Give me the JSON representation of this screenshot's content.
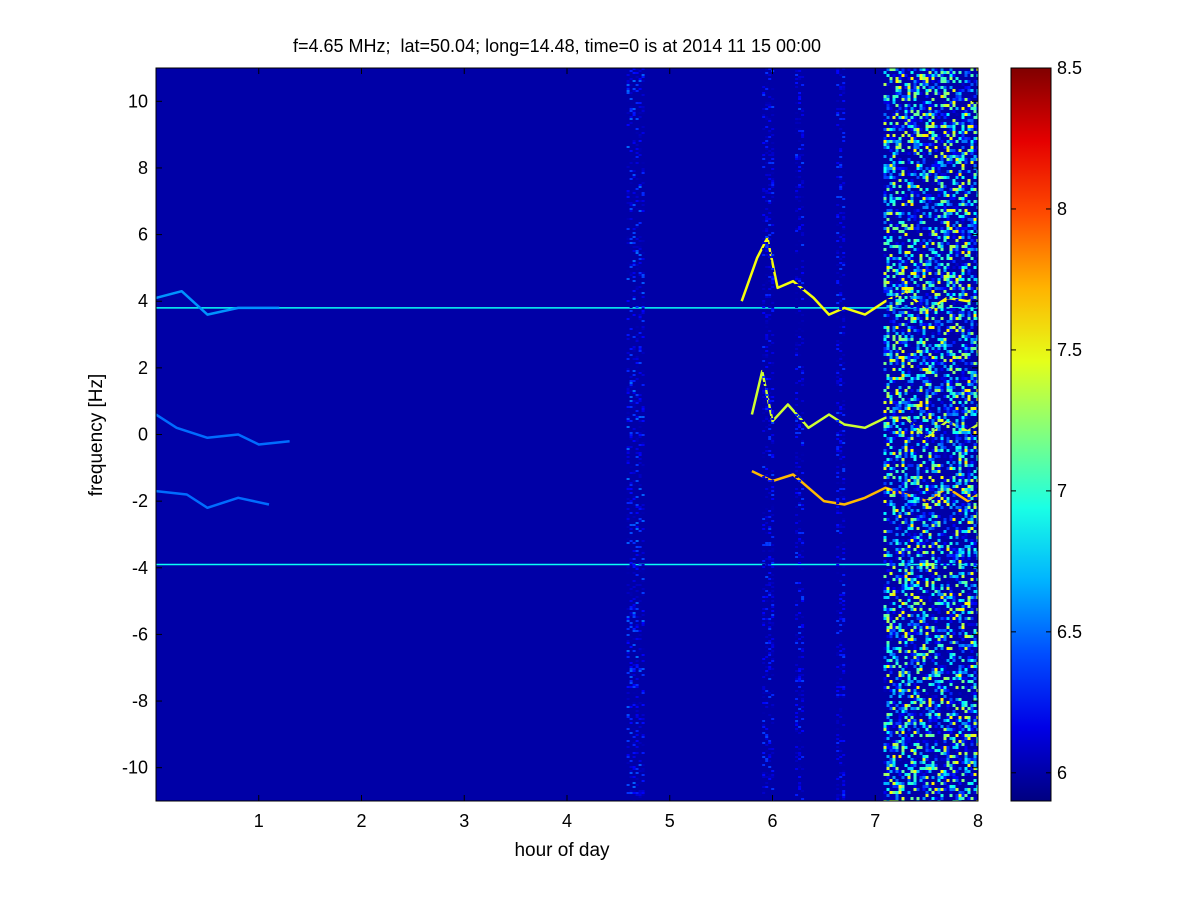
{
  "chart_data": {
    "type": "heatmap",
    "title": "f=4.65 MHz;  lat=50.04; long=14.48, time=0 is at 2014 11 15 00:00",
    "xlabel": "hour of day",
    "ylabel": "frequency [Hz]",
    "xlim": [
      0,
      8
    ],
    "ylim": [
      -11,
      11
    ],
    "x_ticks": [
      "1",
      "2",
      "3",
      "4",
      "5",
      "6",
      "7",
      "8"
    ],
    "y_ticks": [
      "-10",
      "-8",
      "-6",
      "-4",
      "-2",
      "0",
      "2",
      "4",
      "6",
      "8",
      "10"
    ],
    "colorbar": {
      "range": [
        5.9,
        8.5
      ],
      "ticks": [
        "6",
        "6.5",
        "7",
        "7.5",
        "8",
        "8.5"
      ],
      "colormap": "jet"
    },
    "background_level": 6.0,
    "features": [
      {
        "kind": "horizontal-line",
        "y": 3.8,
        "x_range": [
          0,
          8
        ],
        "level": 6.9
      },
      {
        "kind": "horizontal-line",
        "y": -3.9,
        "x_range": [
          0,
          8
        ],
        "level": 6.9
      },
      {
        "kind": "trace",
        "points": [
          [
            0.0,
            4.1
          ],
          [
            0.25,
            4.3
          ],
          [
            0.5,
            3.6
          ],
          [
            0.8,
            3.8
          ],
          [
            1.2,
            3.8
          ]
        ],
        "level": 6.6
      },
      {
        "kind": "trace",
        "points": [
          [
            0.0,
            0.6
          ],
          [
            0.2,
            0.2
          ],
          [
            0.5,
            -0.1
          ],
          [
            0.8,
            0.0
          ],
          [
            1.0,
            -0.3
          ],
          [
            1.3,
            -0.2
          ]
        ],
        "level": 6.5
      },
      {
        "kind": "trace",
        "points": [
          [
            0.0,
            -1.7
          ],
          [
            0.3,
            -1.8
          ],
          [
            0.5,
            -2.2
          ],
          [
            0.8,
            -1.9
          ],
          [
            1.1,
            -2.1
          ]
        ],
        "level": 6.5
      },
      {
        "kind": "trace",
        "points": [
          [
            5.7,
            4.0
          ],
          [
            5.85,
            5.3
          ],
          [
            5.95,
            5.9
          ],
          [
            6.05,
            4.4
          ],
          [
            6.2,
            4.6
          ],
          [
            6.4,
            4.1
          ],
          [
            6.55,
            3.6
          ],
          [
            6.7,
            3.8
          ],
          [
            6.9,
            3.6
          ],
          [
            7.1,
            4.0
          ],
          [
            7.3,
            4.3
          ],
          [
            7.5,
            3.7
          ],
          [
            7.7,
            4.1
          ],
          [
            7.9,
            4.0
          ],
          [
            8.0,
            4.1
          ]
        ],
        "level": 7.5
      },
      {
        "kind": "trace",
        "points": [
          [
            5.8,
            0.6
          ],
          [
            5.9,
            1.9
          ],
          [
            6.0,
            0.4
          ],
          [
            6.15,
            0.9
          ],
          [
            6.35,
            0.2
          ],
          [
            6.55,
            0.6
          ],
          [
            6.7,
            0.3
          ],
          [
            6.9,
            0.2
          ],
          [
            7.1,
            0.5
          ],
          [
            7.3,
            0.5
          ],
          [
            7.5,
            -0.1
          ],
          [
            7.7,
            0.4
          ],
          [
            7.9,
            0.1
          ],
          [
            8.0,
            0.3
          ]
        ],
        "level": 7.4
      },
      {
        "kind": "trace",
        "points": [
          [
            5.8,
            -1.1
          ],
          [
            6.0,
            -1.4
          ],
          [
            6.2,
            -1.2
          ],
          [
            6.35,
            -1.6
          ],
          [
            6.5,
            -2.0
          ],
          [
            6.7,
            -2.1
          ],
          [
            6.9,
            -1.9
          ],
          [
            7.1,
            -1.6
          ],
          [
            7.3,
            -1.8
          ],
          [
            7.5,
            -2.0
          ],
          [
            7.7,
            -1.6
          ],
          [
            7.9,
            -2.0
          ],
          [
            8.0,
            -1.8
          ]
        ],
        "level": 7.7
      },
      {
        "kind": "noise-band",
        "x_range": [
          7.08,
          8.0
        ],
        "y_range": [
          -11,
          11
        ],
        "level_range": [
          6.0,
          7.6
        ]
      },
      {
        "kind": "vertical-band",
        "x_range": [
          4.58,
          4.75
        ],
        "y_range": [
          -11,
          11
        ],
        "level_range": [
          6.0,
          6.5
        ]
      },
      {
        "kind": "vertical-band",
        "x_range": [
          5.9,
          6.0
        ],
        "y_range": [
          -11,
          11
        ],
        "level_range": [
          6.0,
          6.4
        ]
      },
      {
        "kind": "vertical-band",
        "x_range": [
          6.22,
          6.3
        ],
        "y_range": [
          -11,
          11
        ],
        "level_range": [
          6.0,
          6.4
        ]
      },
      {
        "kind": "vertical-band",
        "x_range": [
          6.62,
          6.68
        ],
        "y_range": [
          -11,
          11
        ],
        "level_range": [
          6.0,
          6.4
        ]
      }
    ]
  }
}
